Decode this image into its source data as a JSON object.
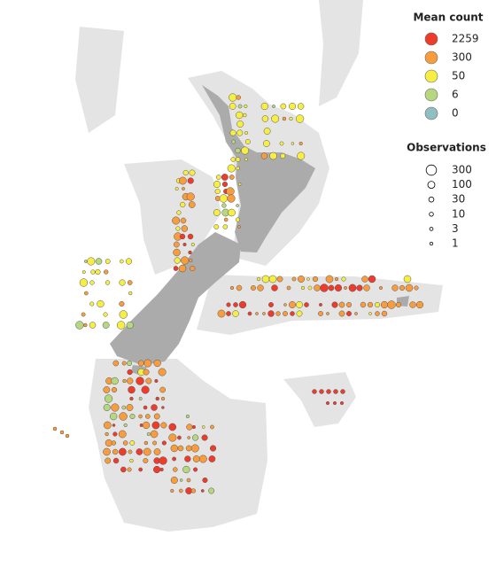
{
  "legend": {
    "mean_count": {
      "title": "Mean count",
      "items": [
        {
          "label": "2259",
          "color": "#ef3b2c"
        },
        {
          "label": "300",
          "color": "#f99c3d"
        },
        {
          "label": "50",
          "color": "#f7ee44"
        },
        {
          "label": "6",
          "color": "#b7d77f"
        },
        {
          "label": "0",
          "color": "#8fbfc0"
        }
      ]
    },
    "observations": {
      "title": "Observations",
      "items": [
        "300",
        "100",
        "30",
        "10",
        "3",
        "1"
      ]
    }
  }
}
